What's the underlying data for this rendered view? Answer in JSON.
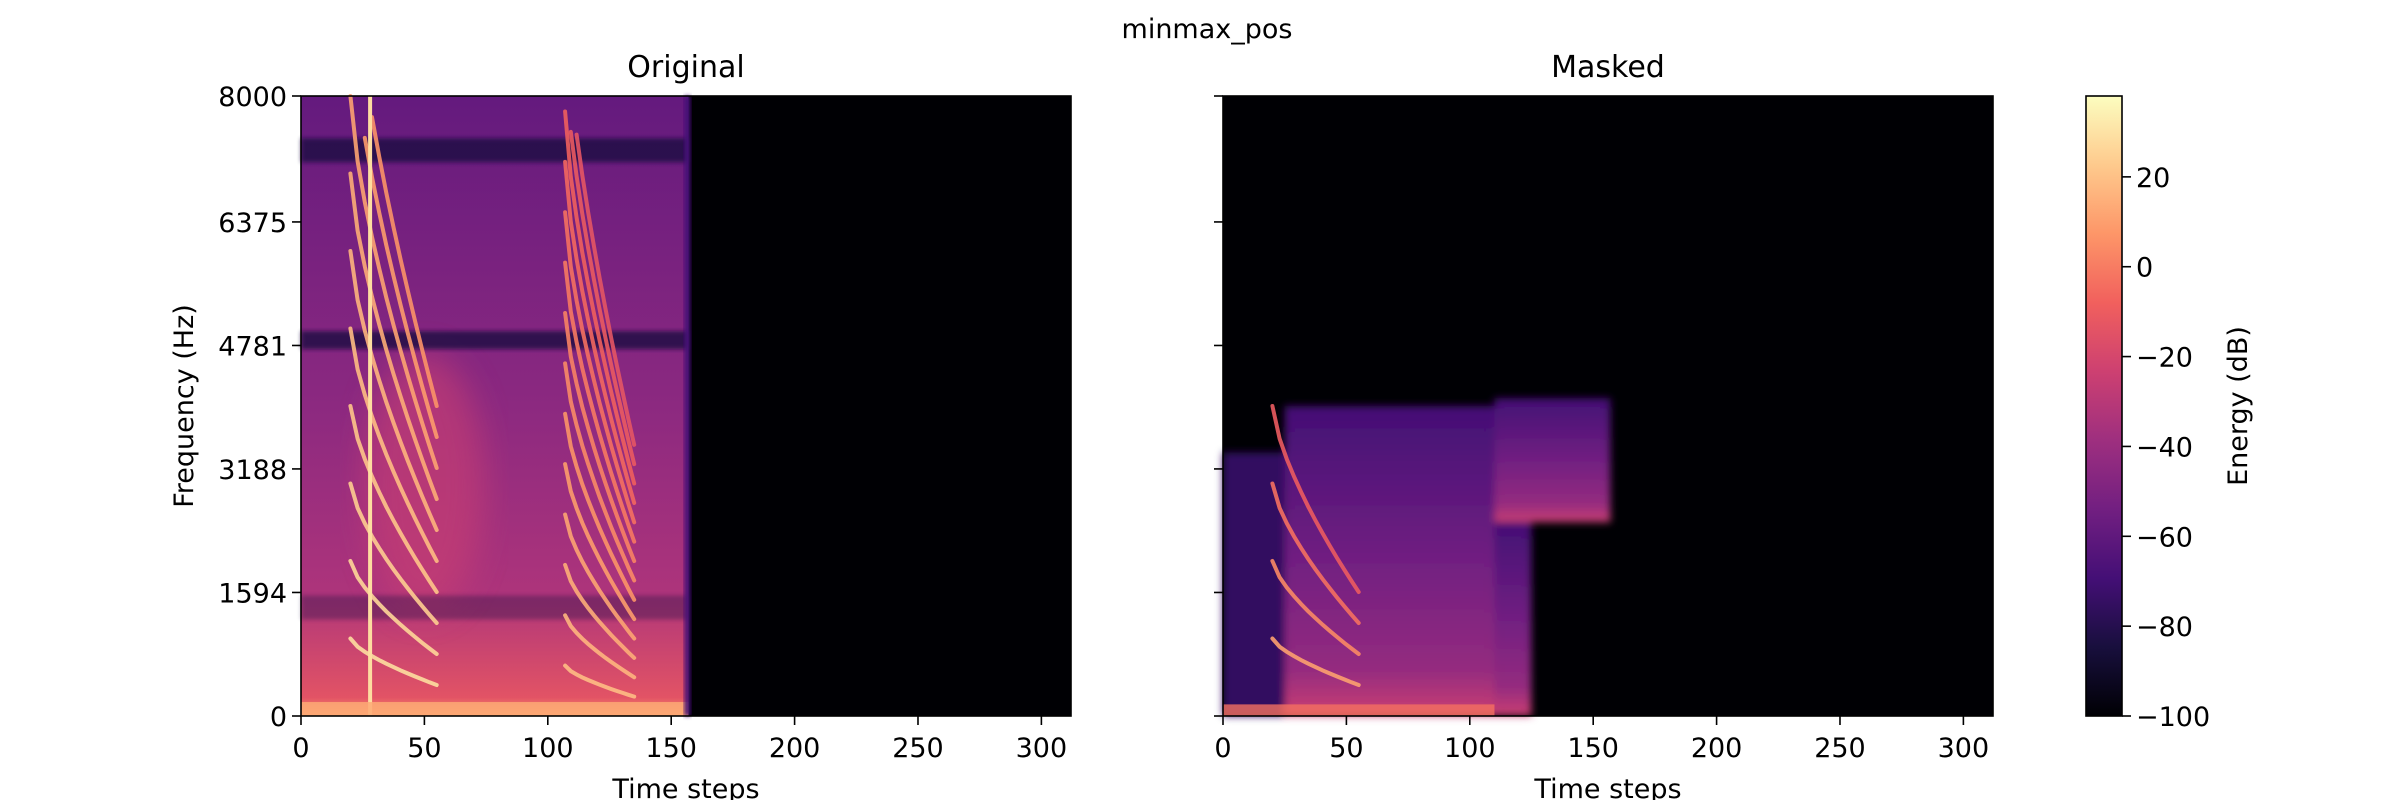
{
  "figure": {
    "suptitle": "minmax_pos"
  },
  "chart_data": [
    {
      "type": "heatmap",
      "panel": "original",
      "title": "Original",
      "xlabel": "Time steps",
      "ylabel": "Frequency (Hz)",
      "xlim": [
        0,
        312
      ],
      "ylim": [
        0,
        8000
      ],
      "xticks": [
        0,
        50,
        100,
        150,
        200,
        250,
        300
      ],
      "yticks": [
        0,
        1594,
        3188,
        4781,
        6375,
        8000
      ],
      "colormap": "magma",
      "active_time_range": [
        0,
        157
      ],
      "harmonic_bursts": [
        {
          "time_range": [
            20,
            55
          ],
          "f0_start": 1000,
          "f0_end": 400
        },
        {
          "time_range": [
            107,
            135
          ],
          "f0_start": 650,
          "f0_end": 250
        }
      ],
      "vertical_click": {
        "time": 28
      },
      "dark_bands_hz": [
        4850,
        7300,
        1400
      ]
    },
    {
      "type": "heatmap",
      "panel": "masked",
      "title": "Masked",
      "xlabel": "Time steps",
      "xlim": [
        0,
        312
      ],
      "ylim": [
        0,
        8000
      ],
      "xticks": [
        0,
        50,
        100,
        150,
        200,
        250,
        300
      ],
      "colormap": "magma",
      "mask_regions": [
        {
          "time_range": [
            0,
            25
          ],
          "freq_max_hz": 3400
        },
        {
          "time_range": [
            25,
            110
          ],
          "freq_max_hz": 4000
        },
        {
          "time_range": [
            110,
            157
          ],
          "freq_max_hz": 4100,
          "freq_min_hz": 2500
        },
        {
          "time_range": [
            110,
            125
          ],
          "freq_max_hz": 2500
        }
      ]
    }
  ],
  "colorbar": {
    "label": "Energy (dB)",
    "range": [
      -100,
      38
    ],
    "ticks": [
      20,
      0,
      -20,
      -40,
      -60,
      -80,
      -100
    ],
    "tick_labels": [
      "20",
      "0",
      "−20",
      "−40",
      "−60",
      "−80",
      "−100"
    ],
    "colormap": "magma"
  },
  "colors": {
    "magma": [
      "#000004",
      "#180f3d",
      "#440f76",
      "#721f81",
      "#9e2f7f",
      "#cd4071",
      "#f1605d",
      "#fd9668",
      "#feca8d",
      "#fcfdbf"
    ]
  }
}
